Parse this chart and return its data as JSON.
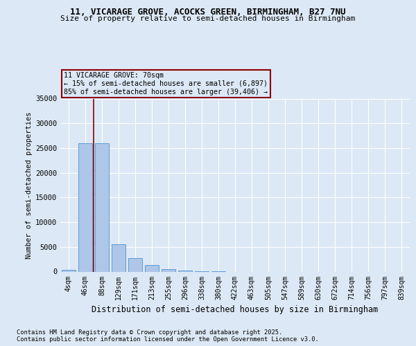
{
  "title1": "11, VICARAGE GROVE, ACOCKS GREEN, BIRMINGHAM, B27 7NU",
  "title2": "Size of property relative to semi-detached houses in Birmingham",
  "xlabel": "Distribution of semi-detached houses by size in Birmingham",
  "ylabel": "Number of semi-detached properties",
  "categories": [
    "4sqm",
    "46sqm",
    "88sqm",
    "129sqm",
    "171sqm",
    "213sqm",
    "255sqm",
    "296sqm",
    "338sqm",
    "380sqm",
    "422sqm",
    "463sqm",
    "505sqm",
    "547sqm",
    "589sqm",
    "630sqm",
    "672sqm",
    "714sqm",
    "756sqm",
    "797sqm",
    "839sqm"
  ],
  "values": [
    300,
    26000,
    26000,
    5500,
    2800,
    1400,
    500,
    200,
    100,
    60,
    0,
    0,
    0,
    0,
    0,
    0,
    0,
    0,
    0,
    0,
    0
  ],
  "bar_color": "#aec6e8",
  "bar_edge_color": "#5b9bd5",
  "vline_x_bar": 1,
  "vline_color": "#8b0000",
  "annotation_title": "11 VICARAGE GROVE: 70sqm",
  "annotation_line2": "← 15% of semi-detached houses are smaller (6,897)",
  "annotation_line3": "85% of semi-detached houses are larger (39,406) →",
  "annotation_box_color": "#8b0000",
  "ylim": [
    0,
    35000
  ],
  "yticks": [
    0,
    5000,
    10000,
    15000,
    20000,
    25000,
    30000,
    35000
  ],
  "footer1": "Contains HM Land Registry data © Crown copyright and database right 2025.",
  "footer2": "Contains public sector information licensed under the Open Government Licence v3.0.",
  "bg_color": "#dce8f5",
  "plot_bg_color": "#dce8f5"
}
